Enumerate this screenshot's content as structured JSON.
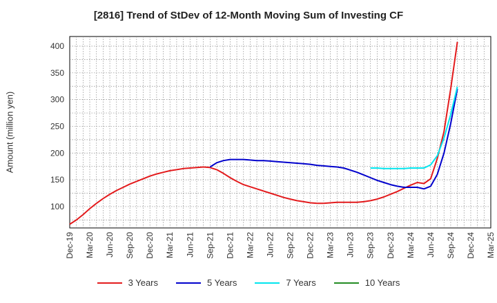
{
  "chart_data": {
    "type": "line",
    "title": "[2816]  Trend of StDev of 12-Month Moving Sum of Investing CF",
    "ylabel": "Amount (million yen)",
    "xlabel": "",
    "ylim": [
      60,
      418
    ],
    "yticks": [
      100,
      150,
      200,
      250,
      300,
      350,
      400
    ],
    "x_ticks": [
      "Dec-19",
      "Mar-20",
      "Jun-20",
      "Sep-20",
      "Dec-20",
      "Mar-21",
      "Jun-21",
      "Sep-21",
      "Dec-21",
      "Mar-22",
      "Jun-22",
      "Sep-22",
      "Dec-22",
      "Mar-23",
      "Jun-23",
      "Sep-23",
      "Dec-23",
      "Mar-24",
      "Jun-24",
      "Sep-24",
      "Dec-24",
      "Mar-25"
    ],
    "grid": true,
    "legend_position": "bottom",
    "series": [
      {
        "name": "3 Years",
        "color": "#e31a1c",
        "points": [
          [
            "Dec-19",
            67
          ],
          [
            "Jan-20",
            75
          ],
          [
            "Feb-20",
            85
          ],
          [
            "Mar-20",
            96
          ],
          [
            "Apr-20",
            106
          ],
          [
            "May-20",
            115
          ],
          [
            "Jun-20",
            123
          ],
          [
            "Jul-20",
            130
          ],
          [
            "Aug-20",
            136
          ],
          [
            "Sep-20",
            142
          ],
          [
            "Oct-20",
            147
          ],
          [
            "Nov-20",
            152
          ],
          [
            "Dec-20",
            157
          ],
          [
            "Jan-21",
            161
          ],
          [
            "Feb-21",
            164
          ],
          [
            "Mar-21",
            167
          ],
          [
            "Apr-21",
            169
          ],
          [
            "May-21",
            171
          ],
          [
            "Jun-21",
            172
          ],
          [
            "Jul-21",
            173
          ],
          [
            "Aug-21",
            174
          ],
          [
            "Sep-21",
            173
          ],
          [
            "Oct-21",
            169
          ],
          [
            "Nov-21",
            162
          ],
          [
            "Dec-21",
            154
          ],
          [
            "Jan-22",
            147
          ],
          [
            "Feb-22",
            141
          ],
          [
            "Mar-22",
            137
          ],
          [
            "Apr-22",
            133
          ],
          [
            "May-22",
            129
          ],
          [
            "Jun-22",
            125
          ],
          [
            "Jul-22",
            121
          ],
          [
            "Aug-22",
            117
          ],
          [
            "Sep-22",
            114
          ],
          [
            "Oct-22",
            111
          ],
          [
            "Nov-22",
            109
          ],
          [
            "Dec-22",
            107
          ],
          [
            "Jan-23",
            106
          ],
          [
            "Feb-23",
            106
          ],
          [
            "Mar-23",
            107
          ],
          [
            "Apr-23",
            108
          ],
          [
            "May-23",
            108
          ],
          [
            "Jun-23",
            108
          ],
          [
            "Jul-23",
            108
          ],
          [
            "Aug-23",
            109
          ],
          [
            "Sep-23",
            111
          ],
          [
            "Oct-23",
            114
          ],
          [
            "Nov-23",
            118
          ],
          [
            "Dec-23",
            123
          ],
          [
            "Jan-24",
            128
          ],
          [
            "Feb-24",
            134
          ],
          [
            "Mar-24",
            140
          ],
          [
            "Apr-24",
            145
          ],
          [
            "May-24",
            143
          ],
          [
            "Jun-24",
            152
          ],
          [
            "Jul-24",
            190
          ],
          [
            "Aug-24",
            240
          ],
          [
            "Sep-24",
            320
          ],
          [
            "Oct-24",
            408
          ]
        ]
      },
      {
        "name": "5 Years",
        "color": "#0000cc",
        "points": [
          [
            "Sep-21",
            174
          ],
          [
            "Oct-21",
            182
          ],
          [
            "Nov-21",
            186
          ],
          [
            "Dec-21",
            188
          ],
          [
            "Jan-22",
            188
          ],
          [
            "Feb-22",
            188
          ],
          [
            "Mar-22",
            187
          ],
          [
            "Apr-22",
            186
          ],
          [
            "May-22",
            186
          ],
          [
            "Jun-22",
            185
          ],
          [
            "Jul-22",
            184
          ],
          [
            "Aug-22",
            183
          ],
          [
            "Sep-22",
            182
          ],
          [
            "Oct-22",
            181
          ],
          [
            "Nov-22",
            180
          ],
          [
            "Dec-22",
            179
          ],
          [
            "Jan-23",
            177
          ],
          [
            "Feb-23",
            176
          ],
          [
            "Mar-23",
            175
          ],
          [
            "Apr-23",
            174
          ],
          [
            "May-23",
            172
          ],
          [
            "Jun-23",
            168
          ],
          [
            "Jul-23",
            164
          ],
          [
            "Aug-23",
            159
          ],
          [
            "Sep-23",
            154
          ],
          [
            "Oct-23",
            149
          ],
          [
            "Nov-23",
            145
          ],
          [
            "Dec-23",
            141
          ],
          [
            "Jan-24",
            138
          ],
          [
            "Feb-24",
            136
          ],
          [
            "Mar-24",
            136
          ],
          [
            "Apr-24",
            136
          ],
          [
            "May-24",
            133
          ],
          [
            "Jun-24",
            138
          ],
          [
            "Jul-24",
            160
          ],
          [
            "Aug-24",
            200
          ],
          [
            "Sep-24",
            255
          ],
          [
            "Oct-24",
            320
          ]
        ]
      },
      {
        "name": "7 Years",
        "color": "#00e5ee",
        "points": [
          [
            "Sep-23",
            172
          ],
          [
            "Oct-23",
            172
          ],
          [
            "Nov-23",
            171
          ],
          [
            "Dec-23",
            171
          ],
          [
            "Jan-24",
            171
          ],
          [
            "Feb-24",
            171
          ],
          [
            "Mar-24",
            172
          ],
          [
            "Apr-24",
            172
          ],
          [
            "May-24",
            172
          ],
          [
            "Jun-24",
            178
          ],
          [
            "Jul-24",
            195
          ],
          [
            "Aug-24",
            228
          ],
          [
            "Sep-24",
            272
          ],
          [
            "Oct-24",
            324
          ]
        ]
      },
      {
        "name": "10 Years",
        "color": "#228b22",
        "points": []
      }
    ]
  }
}
